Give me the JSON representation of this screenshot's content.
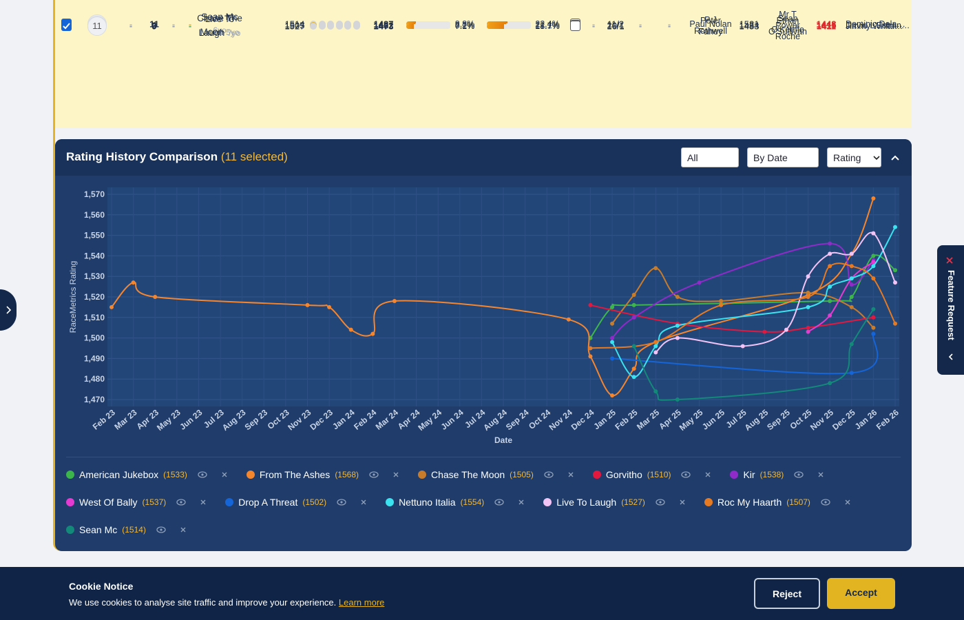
{
  "table": {
    "rows": [
      [
        "9",
        "-",
        "11",
        "-",
        "-",
        {
          "name": "Sean Mc",
          "age": "6yo"
        },
        "1514",
        "1487",
        "8.8%",
        "22.4%",
        "-",
        "11/2",
        "-",
        "-",
        "Paul Nolan",
        "1521",
        "Sean O'Keeffe",
        "1448",
        "Dominic Dela…"
      ],
      [
        "10",
        "-",
        "3",
        "-",
        "-",
        {
          "name": "Chase The Moon",
          "age": "5yo"
        },
        "1505",
        "1482",
        "8.2%",
        "21.1%",
        "-",
        "20/1",
        "-",
        "-",
        "P J Rothwell",
        "1454",
        "Mr T Power Roche",
        "1415",
        "David L'Estran…"
      ],
      [
        "11",
        "-",
        "9",
        "-",
        "-",
        {
          "name": "Live To Laugh",
          "age": "7yo"
        },
        "1527",
        "1473",
        "7.1%",
        "18.7%",
        "-",
        "16/1",
        "-",
        "-",
        "Peter Fahey",
        "1483",
        "Ethan O'Sullivan",
        "1411",
        "Jimmy Whittl…"
      ]
    ]
  },
  "panel": {
    "title": "Rating History Comparison",
    "selected": "(11 selected)",
    "filters": [
      "All",
      "By Date",
      "Rating"
    ]
  },
  "chart_data": {
    "type": "line",
    "x_label": "Date",
    "y_label": "RaceMetrics Rating",
    "grid": true,
    "xlim": [
      "2023-02",
      "2026-02"
    ],
    "xticks": [
      {
        "value": "2023-02",
        "label": "Feb 23"
      },
      {
        "value": "2023-03",
        "label": "Mar 23"
      },
      {
        "value": "2023-04",
        "label": "Apr 23"
      },
      {
        "value": "2023-05",
        "label": "May 23"
      },
      {
        "value": "2023-06",
        "label": "Jun 23"
      },
      {
        "value": "2023-07",
        "label": "Jul 23"
      },
      {
        "value": "2023-08",
        "label": "Aug 23"
      },
      {
        "value": "2023-09",
        "label": "Sep 23"
      },
      {
        "value": "2023-10",
        "label": "Oct 23"
      },
      {
        "value": "2023-11",
        "label": "Nov 23"
      },
      {
        "value": "2023-12",
        "label": "Dec 23"
      },
      {
        "value": "2024-01",
        "label": "Jan 24"
      },
      {
        "value": "2024-02",
        "label": "Feb 24"
      },
      {
        "value": "2024-03",
        "label": "Mar 24"
      },
      {
        "value": "2024-04",
        "label": "Apr 24"
      },
      {
        "value": "2024-05",
        "label": "May 24"
      },
      {
        "value": "2024-06",
        "label": "Jun 24"
      },
      {
        "value": "2024-07",
        "label": "Jul 24"
      },
      {
        "value": "2024-08",
        "label": "Aug 24"
      },
      {
        "value": "2024-09",
        "label": "Sep 24"
      },
      {
        "value": "2024-10",
        "label": "Oct 24"
      },
      {
        "value": "2024-11",
        "label": "Nov 24"
      },
      {
        "value": "2024-12",
        "label": "Dec 24"
      },
      {
        "value": "2025-01",
        "label": "Jan 25"
      },
      {
        "value": "2025-02",
        "label": "Feb 25"
      },
      {
        "value": "2025-03",
        "label": "Mar 25"
      },
      {
        "value": "2025-04",
        "label": "Apr 25"
      },
      {
        "value": "2025-05",
        "label": "May 25"
      },
      {
        "value": "2025-06",
        "label": "Jun 25"
      },
      {
        "value": "2025-07",
        "label": "Jul 25"
      },
      {
        "value": "2025-08",
        "label": "Aug 25"
      },
      {
        "value": "2025-09",
        "label": "Sep 25"
      },
      {
        "value": "2025-10",
        "label": "Oct 25"
      },
      {
        "value": "2025-11",
        "label": "Nov 25"
      },
      {
        "value": "2025-12",
        "label": "Dec 25"
      },
      {
        "value": "2026-01",
        "label": "Jan 26"
      },
      {
        "value": "2026-02",
        "label": "Feb 26"
      }
    ],
    "ylim": [
      1470,
      1570
    ],
    "yticks": [
      {
        "value": 1470,
        "label": "1,470"
      },
      {
        "value": 1480,
        "label": "1,480"
      },
      {
        "value": 1490,
        "label": "1,490"
      },
      {
        "value": 1500,
        "label": "1,500"
      },
      {
        "value": 1510,
        "label": "1,510"
      },
      {
        "value": 1520,
        "label": "1,520"
      },
      {
        "value": 1530,
        "label": "1,530"
      },
      {
        "value": 1540,
        "label": "1,540"
      },
      {
        "value": 1550,
        "label": "1,550"
      },
      {
        "value": 1560,
        "label": "1,560"
      },
      {
        "value": 1570,
        "label": "1,570"
      }
    ],
    "series": [
      {
        "name": "American Jukebox",
        "rating": "(1533)",
        "color": "#3cb64a",
        "x": [
          "2024-12",
          "2025-01",
          "2025-02",
          "2025-11",
          "2025-12",
          "2026-01",
          "2026-02"
        ],
        "values": [
          1500,
          1515,
          1516,
          1518,
          1520,
          1540,
          1533
        ]
      },
      {
        "name": "From The Ashes",
        "rating": "(1568)",
        "color": "#f5862e",
        "x": [
          "2023-02",
          "2023-03",
          "2023-04",
          "2023-11",
          "2023-12",
          "2024-01",
          "2024-02",
          "2024-03",
          "2024-11",
          "2024-12",
          "2025-01",
          "2025-02",
          "2025-03",
          "2025-10",
          "2025-12",
          "2026-01"
        ],
        "values": [
          1515,
          1527,
          1520,
          1516,
          1515,
          1504,
          1502,
          1518,
          1509,
          1491,
          1472,
          1485,
          1498,
          1521,
          1541,
          1568
        ]
      },
      {
        "name": "Chase The Moon",
        "rating": "(1505)",
        "color": "#c77c2c",
        "x": [
          "2025-01",
          "2025-02",
          "2025-03",
          "2025-04",
          "2025-06",
          "2025-10",
          "2025-12",
          "2026-01"
        ],
        "values": [
          1507,
          1521,
          1534,
          1520,
          1518,
          1522,
          1515,
          1505
        ]
      },
      {
        "name": "Gorvitho",
        "rating": "(1510)",
        "color": "#e3183f",
        "x": [
          "2024-12",
          "2025-04",
          "2025-08",
          "2025-10",
          "2026-01"
        ],
        "values": [
          1516,
          1507,
          1503,
          1505,
          1510
        ]
      },
      {
        "name": "Kir",
        "rating": "(1538)",
        "color": "#8e2bc9",
        "x": [
          "2025-01",
          "2025-02",
          "2025-05",
          "2025-11",
          "2025-12",
          "2026-01"
        ],
        "values": [
          1500,
          1510,
          1527,
          1546,
          1526,
          1538
        ]
      },
      {
        "name": "West Of Bally",
        "rating": "(1537)",
        "color": "#e53bd0",
        "x": [
          "2025-10",
          "2025-11",
          "2025-12",
          "2026-01"
        ],
        "values": [
          1503,
          1511,
          1529,
          1537
        ]
      },
      {
        "name": "Drop A Threat",
        "rating": "(1502)",
        "color": "#1565d8",
        "x": [
          "2025-01",
          "2025-12",
          "2026-01"
        ],
        "values": [
          1490,
          1483,
          1502
        ]
      },
      {
        "name": "Nettuno Italia",
        "rating": "(1554)",
        "color": "#3be3f0",
        "x": [
          "2025-01",
          "2025-02",
          "2025-03",
          "2025-04",
          "2025-10",
          "2025-11",
          "2025-12",
          "2026-01",
          "2026-02"
        ],
        "values": [
          1498,
          1481,
          1496,
          1506,
          1515,
          1525,
          1529,
          1535,
          1554
        ]
      },
      {
        "name": "Live To Laugh",
        "rating": "(1527)",
        "color": "#f2c4f5",
        "x": [
          "2025-03",
          "2025-04",
          "2025-07",
          "2025-09",
          "2025-10",
          "2025-11",
          "2025-12",
          "2026-01",
          "2026-02"
        ],
        "values": [
          1493,
          1500,
          1496,
          1504,
          1530,
          1541,
          1541,
          1551,
          1527
        ]
      },
      {
        "name": "Roc My Haarth",
        "rating": "(1507)",
        "color": "#e67a22",
        "x": [
          "2024-12",
          "2025-03",
          "2025-06",
          "2025-10",
          "2025-11",
          "2025-12",
          "2026-01",
          "2026-02"
        ],
        "values": [
          1495,
          1498,
          1516,
          1520,
          1535,
          1535,
          1529,
          1507
        ]
      },
      {
        "name": "Sean Mc",
        "rating": "(1514)",
        "color": "#13897a",
        "x": [
          "2025-02",
          "2025-03",
          "2025-04",
          "2025-11",
          "2025-12",
          "2026-01"
        ],
        "values": [
          1496,
          1474,
          1470,
          1478,
          1497,
          1514
        ]
      }
    ]
  },
  "cookie": {
    "title": "Cookie Notice",
    "text": "We use cookies to analyse site traffic and improve your experience.",
    "link": "Learn more",
    "reject": "Reject",
    "accept": "Accept"
  },
  "feature_tab": {
    "label": "Feature Request"
  }
}
